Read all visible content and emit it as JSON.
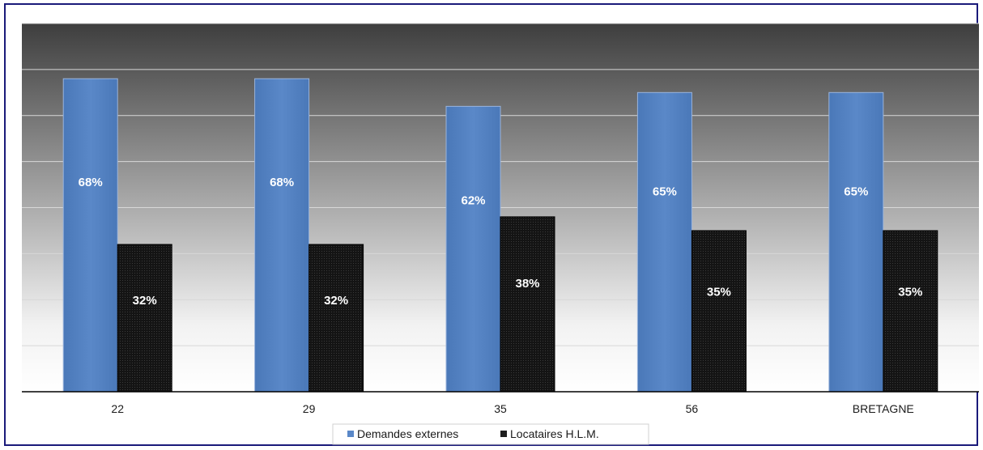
{
  "chart_data": {
    "type": "bar",
    "categories": [
      "22",
      "29",
      "35",
      "56",
      "BRETAGNE"
    ],
    "series": [
      {
        "name": "Demandes externes",
        "values": [
          68,
          68,
          62,
          65,
          65
        ],
        "labels": [
          "68%",
          "68%",
          "62%",
          "65%",
          "65%"
        ],
        "color": "#4f7fbf"
      },
      {
        "name": "Locataires H.L.M.",
        "values": [
          32,
          32,
          38,
          35,
          35
        ],
        "labels": [
          "32%",
          "32%",
          "38%",
          "35%",
          "35%"
        ],
        "color": "#1e1e1e"
      }
    ],
    "ylim": [
      0,
      80
    ],
    "grid": true,
    "legend": "bottom",
    "colors": {
      "plot_top": "#3c3c3c",
      "plot_bottom": "#ffffff",
      "gridline": "#d8d8d8",
      "frame": "#1a1a7a"
    }
  }
}
